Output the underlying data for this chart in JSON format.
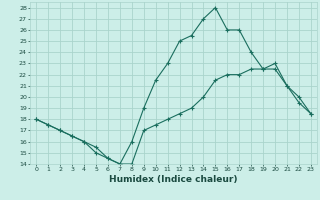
{
  "xlabel": "Humidex (Indice chaleur)",
  "bg_color": "#cceee8",
  "grid_color": "#aad4cc",
  "line_color": "#1a6e5e",
  "xlim": [
    -0.5,
    23.5
  ],
  "ylim": [
    14,
    28.5
  ],
  "xticks": [
    0,
    1,
    2,
    3,
    4,
    5,
    6,
    7,
    8,
    9,
    10,
    11,
    12,
    13,
    14,
    15,
    16,
    17,
    18,
    19,
    20,
    21,
    22,
    23
  ],
  "yticks": [
    14,
    15,
    16,
    17,
    18,
    19,
    20,
    21,
    22,
    23,
    24,
    25,
    26,
    27,
    28
  ],
  "line1_x": [
    0,
    1,
    2,
    3,
    4,
    5,
    6,
    7,
    8,
    9,
    10,
    11,
    12,
    13,
    14,
    15,
    16,
    17,
    18,
    19,
    20,
    21,
    22,
    23
  ],
  "line1_y": [
    18.0,
    17.5,
    17.0,
    16.5,
    16.0,
    15.5,
    14.5,
    14.0,
    14.0,
    17.0,
    17.5,
    18.0,
    18.5,
    19.0,
    20.0,
    21.5,
    22.0,
    22.0,
    22.5,
    22.5,
    23.0,
    21.0,
    19.5,
    18.5
  ],
  "line2_x": [
    0,
    1,
    2,
    3,
    4,
    5,
    6,
    7,
    8,
    9,
    10,
    11,
    12,
    13,
    14,
    15,
    16,
    17,
    18,
    19,
    20,
    21,
    22,
    23
  ],
  "line2_y": [
    18.0,
    17.5,
    17.0,
    16.5,
    16.0,
    15.0,
    14.5,
    14.0,
    16.0,
    19.0,
    21.5,
    23.0,
    25.0,
    25.5,
    27.0,
    28.0,
    26.0,
    26.0,
    24.0,
    22.5,
    22.5,
    21.0,
    20.0,
    18.5
  ]
}
